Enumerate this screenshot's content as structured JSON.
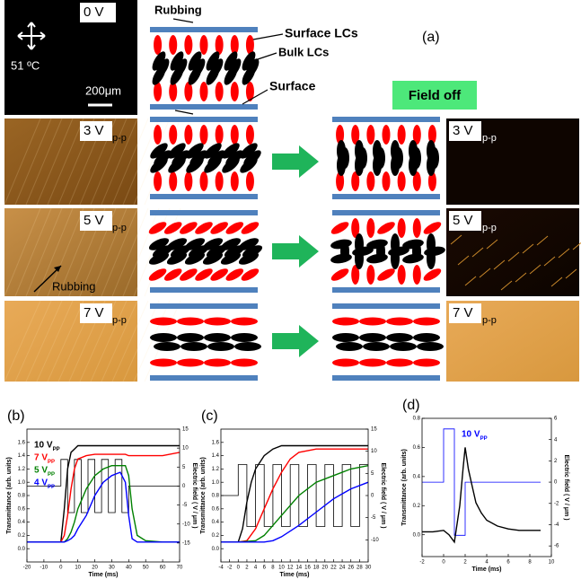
{
  "figure": {
    "label_a": "(a)",
    "temperature": "51 ºC",
    "scale_bar": "200μm",
    "rubbing_image": "Rubbing",
    "field_off": "Field off",
    "diagram": {
      "rubbing": "Rubbing",
      "surface_lcs": "Surface  LCs",
      "bulk_lcs": "Bulk LCs",
      "surface": "Surface"
    },
    "microscope_left": [
      {
        "voltage": "0 V"
      },
      {
        "voltage": "3 V",
        "unit": "p-p"
      },
      {
        "voltage": "5 V",
        "unit": "p-p"
      },
      {
        "voltage": "7 V",
        "unit": "p-p"
      }
    ],
    "microscope_right": [
      {
        "voltage": "3 V",
        "unit": "p-p"
      },
      {
        "voltage": "5 V",
        "unit": "p-p"
      },
      {
        "voltage": "7 V",
        "unit": "p-p"
      }
    ]
  },
  "chart_data": [
    {
      "type": "line",
      "panel_label": "(b)",
      "xlabel": "Time (ms)",
      "ylabel": "Transmittance (arb. units)",
      "y2label": "Electric field ( V / μm )",
      "xlim": [
        -20,
        70
      ],
      "xticks": [
        -20,
        -10,
        0,
        10,
        20,
        30,
        40,
        50,
        60,
        70
      ],
      "ylim": [
        -0.2,
        1.8
      ],
      "yticks": [
        {
          "value": 0,
          "label": "0.0"
        },
        0.2,
        0.4,
        0.6,
        0.8,
        {
          "value": 1,
          "label": "1.0"
        },
        1.2,
        1.4,
        1.6
      ],
      "y2lim": [
        -20,
        15
      ],
      "y2ticks": [
        -15,
        -10,
        -5,
        0,
        5,
        10,
        15
      ],
      "legend": "upper left",
      "series": [
        {
          "name": "10 V",
          "name_sub": "PP",
          "color": "#000000",
          "x": [
            -20,
            -10,
            0,
            2,
            4,
            6,
            8,
            10,
            15,
            20,
            25,
            30,
            35,
            38,
            40,
            42,
            45,
            50,
            60,
            70
          ],
          "values": [
            0.1,
            0.1,
            0.1,
            0.6,
            1.2,
            1.45,
            1.5,
            1.55,
            1.55,
            1.55,
            1.55,
            1.55,
            1.55,
            1.55,
            1.55,
            1.55,
            1.55,
            1.55,
            1.55,
            1.55
          ]
        },
        {
          "name": "7 V",
          "name_sub": "PP",
          "color": "#ff0000",
          "x": [
            -20,
            -10,
            0,
            2,
            4,
            6,
            8,
            10,
            15,
            20,
            25,
            30,
            35,
            38,
            40,
            42,
            45,
            50,
            60,
            70
          ],
          "values": [
            0.1,
            0.1,
            0.1,
            0.2,
            0.5,
            0.9,
            1.2,
            1.35,
            1.4,
            1.42,
            1.42,
            1.42,
            1.42,
            1.42,
            1.4,
            1.4,
            1.4,
            1.4,
            1.4,
            1.45
          ]
        },
        {
          "name": "5 V",
          "name_sub": "PP",
          "color": "#008000",
          "x": [
            -20,
            -10,
            0,
            2,
            4,
            6,
            8,
            10,
            15,
            20,
            25,
            30,
            35,
            38,
            40,
            42,
            45,
            50,
            60,
            70
          ],
          "values": [
            0.1,
            0.1,
            0.1,
            0.1,
            0.15,
            0.25,
            0.4,
            0.6,
            0.9,
            1.1,
            1.2,
            1.25,
            1.25,
            1.25,
            1.1,
            0.6,
            0.2,
            0.12,
            0.1,
            0.1
          ]
        },
        {
          "name": "4 V",
          "name_sub": "PP",
          "color": "#0000ff",
          "x": [
            -20,
            -10,
            0,
            2,
            4,
            6,
            8,
            10,
            15,
            20,
            25,
            30,
            35,
            38,
            40,
            42,
            45,
            50,
            60,
            70
          ],
          "values": [
            0.1,
            0.1,
            0.1,
            0.1,
            0.12,
            0.15,
            0.2,
            0.3,
            0.5,
            0.8,
            1.0,
            1.1,
            1.15,
            1.0,
            0.5,
            0.15,
            0.1,
            0.1,
            0.1,
            0.1
          ]
        },
        {
          "axis": "y2",
          "color": "#000000",
          "x": [
            -20,
            0,
            0,
            4,
            4,
            8,
            8,
            12,
            12,
            16,
            16,
            20,
            20,
            24,
            24,
            28,
            28,
            32,
            32,
            36,
            36,
            40,
            40,
            70
          ],
          "values": [
            0,
            0,
            7,
            7,
            -7,
            -7,
            7,
            7,
            -7,
            -7,
            7,
            7,
            -7,
            -7,
            7,
            7,
            -7,
            -7,
            7,
            7,
            -7,
            -7,
            0,
            0
          ]
        }
      ]
    },
    {
      "type": "line",
      "panel_label": "(c)",
      "xlabel": "Time (ms)",
      "ylabel": "Transmittance (arb. units)",
      "y2label": "Electric field ( V / μm )",
      "xlim": [
        -4,
        30
      ],
      "xticks": [
        -4,
        -2,
        0,
        2,
        4,
        6,
        8,
        10,
        12,
        14,
        16,
        18,
        20,
        22,
        24,
        26,
        28,
        30
      ],
      "ylim": [
        -0.2,
        1.8
      ],
      "yticks": [
        {
          "value": 0,
          "label": "0.0"
        },
        0.2,
        0.4,
        0.6,
        0.8,
        {
          "value": 1,
          "label": "1.0"
        },
        1.2,
        1.4,
        1.6
      ],
      "y2lim": [
        -15,
        15
      ],
      "y2ticks": [
        -10,
        -5,
        0,
        5,
        10,
        15
      ],
      "series": [
        {
          "color": "#000000",
          "x": [
            -4,
            0,
            1,
            2,
            3,
            4,
            6,
            8,
            10,
            14,
            20,
            30
          ],
          "values": [
            0.1,
            0.1,
            0.3,
            0.7,
            1.0,
            1.2,
            1.4,
            1.5,
            1.55,
            1.55,
            1.55,
            1.55
          ]
        },
        {
          "color": "#ff0000",
          "x": [
            -4,
            0,
            2,
            4,
            6,
            8,
            10,
            12,
            14,
            18,
            22,
            30
          ],
          "values": [
            0.1,
            0.1,
            0.12,
            0.3,
            0.6,
            0.9,
            1.15,
            1.35,
            1.45,
            1.5,
            1.5,
            1.5
          ]
        },
        {
          "color": "#008000",
          "x": [
            -4,
            0,
            4,
            6,
            8,
            10,
            14,
            18,
            22,
            26,
            30
          ],
          "values": [
            0.1,
            0.1,
            0.12,
            0.2,
            0.35,
            0.5,
            0.8,
            1.0,
            1.1,
            1.2,
            1.25
          ]
        },
        {
          "color": "#0000ff",
          "x": [
            -4,
            0,
            6,
            8,
            10,
            14,
            18,
            22,
            26,
            30
          ],
          "values": [
            0.1,
            0.1,
            0.1,
            0.12,
            0.18,
            0.35,
            0.55,
            0.75,
            0.9,
            1.0
          ]
        },
        {
          "axis": "y2",
          "color": "#000000",
          "x": [
            -4,
            0,
            0,
            2,
            2,
            4,
            4,
            6,
            6,
            8,
            8,
            10,
            10,
            12,
            12,
            14,
            14,
            16,
            16,
            18,
            18,
            20,
            20,
            22,
            22,
            24,
            24,
            26,
            26,
            28,
            28,
            30
          ],
          "values": [
            0,
            0,
            7,
            7,
            -7,
            -7,
            7,
            7,
            -7,
            -7,
            7,
            7,
            -7,
            -7,
            7,
            7,
            -7,
            -7,
            7,
            7,
            -7,
            -7,
            7,
            7,
            -7,
            -7,
            7,
            7,
            -7,
            -7,
            7,
            7
          ]
        }
      ]
    },
    {
      "type": "line",
      "panel_label": "(d)",
      "xlabel": "Time (ms)",
      "ylabel": "Transmittance (arb. units)",
      "y2label": "Electric field ( V / μm )",
      "xlim": [
        -2,
        10
      ],
      "xticks": [
        -2,
        0,
        2,
        4,
        6,
        8,
        10
      ],
      "ylim": [
        -0.15,
        0.8
      ],
      "yticks": [
        {
          "value": 0,
          "label": "0.0"
        },
        0.2,
        0.4,
        0.6,
        0.8
      ],
      "y2lim": [
        -7,
        6
      ],
      "y2ticks": [
        -6,
        -4,
        -2,
        0,
        2,
        4,
        6
      ],
      "legend": "upper center",
      "series": [
        {
          "color": "#000000",
          "x": [
            -2,
            -1,
            0,
            0.5,
            1,
            1.5,
            1.8,
            2,
            2.3,
            2.6,
            3,
            3.5,
            4,
            5,
            6,
            7,
            8,
            9
          ],
          "values": [
            0.02,
            0.02,
            0.03,
            0.0,
            -0.05,
            0.2,
            0.45,
            0.6,
            0.45,
            0.35,
            0.22,
            0.15,
            0.1,
            0.06,
            0.04,
            0.03,
            0.03,
            0.03
          ]
        },
        {
          "name": "10 V",
          "name_sub": "PP",
          "axis": "y2",
          "color": "#0000ff",
          "x": [
            -2,
            0,
            0,
            1,
            1,
            2,
            2,
            9
          ],
          "values": [
            0,
            0,
            5,
            5,
            -5,
            -5,
            0,
            0
          ]
        }
      ]
    }
  ]
}
